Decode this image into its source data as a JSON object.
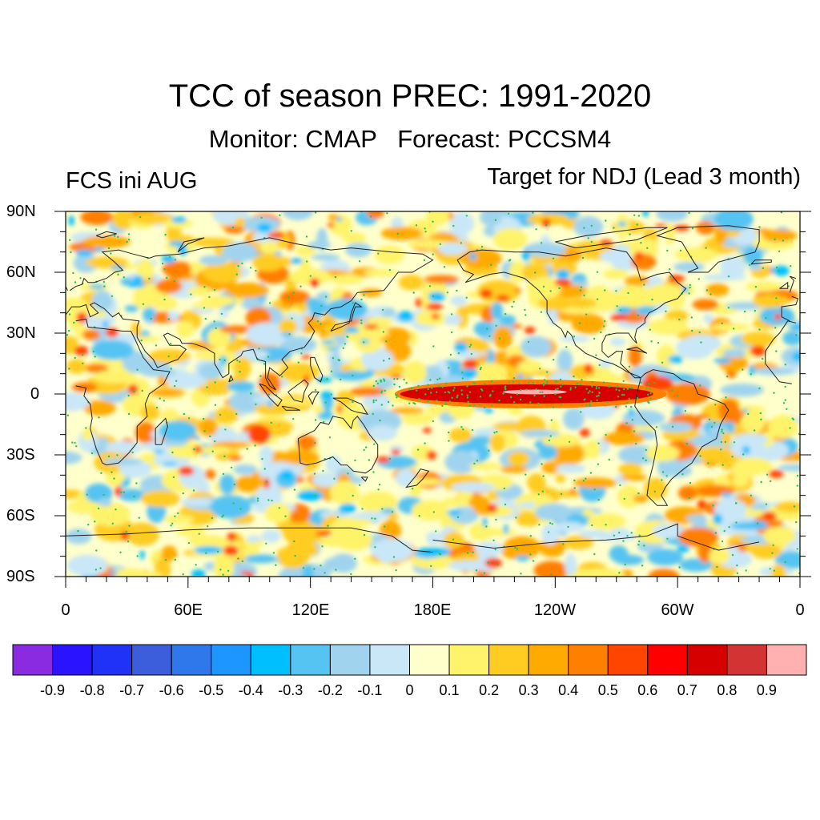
{
  "title": "TCC of season PREC: 1991-2020",
  "subtitle": "Monitor: CMAP   Forecast: PCCSM4",
  "left_label": "FCS ini AUG",
  "right_label": "Target for NDJ (Lead 3 month)",
  "map": {
    "lat_ticks": [
      "90N",
      "60N",
      "30N",
      "0",
      "30S",
      "60S",
      "90S"
    ],
    "lon_ticks": [
      "0",
      "60E",
      "120E",
      "180E",
      "120W",
      "60W",
      "0"
    ],
    "lon_range": [
      0,
      360
    ],
    "lat_range": [
      -90,
      90
    ],
    "significance_marker_color": "#22c35a",
    "coastline_color": "#222222"
  },
  "colorbar": {
    "colors": [
      "#8a2be2",
      "#2a14ff",
      "#1f32f5",
      "#3c5ddc",
      "#2f78ec",
      "#1e96ff",
      "#00bfff",
      "#56c4f2",
      "#a0d4ee",
      "#c9e7f7",
      "#ffffcc",
      "#fff36b",
      "#ffcc22",
      "#ffaa00",
      "#ff7f00",
      "#ff4500",
      "#ff0000",
      "#d70000",
      "#d43333",
      "#ffb0b0"
    ],
    "labels": [
      "-0.9",
      "-0.8",
      "-0.7",
      "-0.6",
      "-0.5",
      "-0.4",
      "-0.3",
      "-0.2",
      "-0.1",
      "0",
      "0.1",
      "0.2",
      "0.3",
      "0.4",
      "0.5",
      "0.6",
      "0.7",
      "0.8",
      "0.9"
    ]
  }
}
